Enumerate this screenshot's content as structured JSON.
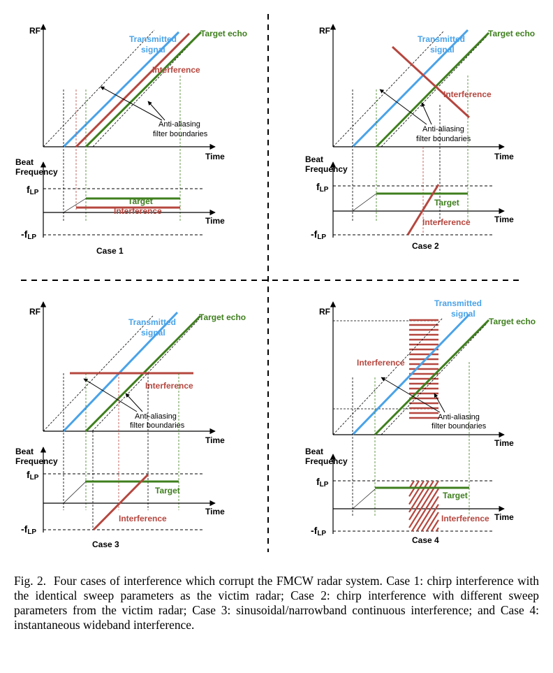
{
  "colors": {
    "transmitted": "#4aa3e8",
    "target": "#3f7f1e",
    "interference": "#b5473f",
    "axis": "#000000"
  },
  "labels": {
    "rf": "RF",
    "time": "Time",
    "beat_line1": "Beat",
    "beat_line2": "Frequency",
    "transmitted_line1": "Transmitted",
    "transmitted_line2": "signal",
    "target_echo": "Target echo",
    "interference": "Interference",
    "target": "Target",
    "aa_line1": "Anti-aliasing",
    "aa_line2": "filter boundaries",
    "flp_main": "f",
    "flp_sub": "LP",
    "neg_flp_main": "-f",
    "neg_flp_sub": "LP"
  },
  "cases": [
    {
      "title": "Case 1"
    },
    {
      "title": "Case 2"
    },
    {
      "title": "Case 3"
    },
    {
      "title": "Case 4"
    }
  ],
  "caption": {
    "fig_label": "Fig. 2.",
    "text": "Four cases of interference which corrupt the FMCW radar system. Case 1: chirp interference with the identical sweep parameters as the victim radar; Case 2: chirp interference with different sweep parameters from the victim radar; Case 3: sinusoidal/narrowband continuous interference; and Case 4: instantaneous wideband interference."
  }
}
